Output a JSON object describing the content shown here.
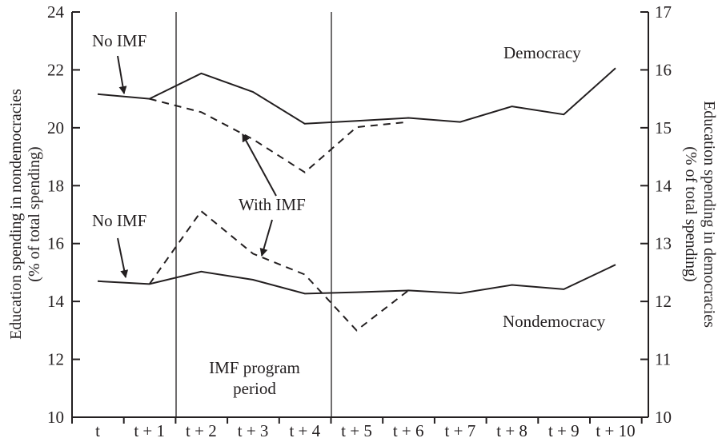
{
  "chart_data": {
    "type": "line",
    "categories": [
      "t",
      "t + 1",
      "t + 2",
      "t + 3",
      "t + 4",
      "t + 5",
      "t + 6",
      "t + 7",
      "t + 8",
      "t + 9",
      "t + 10"
    ],
    "left_axis": {
      "label_line1": "Education spending in nondemocracies",
      "label_line2": "(% of total spending)",
      "range": [
        10,
        24
      ],
      "ticks": [
        "10",
        "12",
        "14",
        "16",
        "18",
        "20",
        "22",
        "24"
      ]
    },
    "right_axis": {
      "label_line1": "Education spending in democracies",
      "label_line2": "(% of total spending)",
      "range": [
        10,
        17
      ],
      "ticks": [
        "10",
        "11",
        "12",
        "13",
        "14",
        "15",
        "16",
        "17"
      ]
    },
    "series": [
      {
        "name": "Democracy",
        "axis": "right",
        "style": "solid",
        "x": [
          "t",
          "t + 1",
          "t + 2",
          "t + 3",
          "t + 4",
          "t + 5",
          "t + 6",
          "t + 7",
          "t + 8",
          "t + 9",
          "t + 10"
        ],
        "values": [
          15.58,
          15.5,
          15.94,
          15.62,
          15.07,
          15.12,
          15.17,
          15.1,
          15.37,
          15.23,
          16.03
        ]
      },
      {
        "name": "Democracy with IMF",
        "axis": "right",
        "style": "dashed",
        "x": [
          "t + 1",
          "t + 2",
          "t + 3",
          "t + 4",
          "t + 5",
          "t + 6"
        ],
        "values": [
          15.5,
          15.27,
          14.8,
          14.23,
          15.01,
          15.1
        ]
      },
      {
        "name": "Nondemocracy",
        "axis": "left",
        "style": "solid",
        "x": [
          "t",
          "t + 1",
          "t + 2",
          "t + 3",
          "t + 4",
          "t + 5",
          "t + 6",
          "t + 7",
          "t + 8",
          "t + 9",
          "t + 10"
        ],
        "values": [
          14.7,
          14.6,
          15.03,
          14.75,
          14.27,
          14.32,
          14.38,
          14.28,
          14.57,
          14.42,
          15.27
        ]
      },
      {
        "name": "Nondemocracy with IMF",
        "axis": "left",
        "style": "dashed",
        "x": [
          "t + 1",
          "t + 2",
          "t + 3",
          "t + 4",
          "t + 5",
          "t + 6"
        ],
        "values": [
          14.6,
          17.12,
          15.65,
          14.93,
          13.0,
          14.38
        ]
      }
    ],
    "program_period": {
      "start": "t + 1",
      "end": "t + 4",
      "label_line1": "IMF program",
      "label_line2": "period"
    },
    "annotations": {
      "no_imf_top": "No IMF",
      "no_imf_bottom": "No IMF",
      "with_imf": "With IMF",
      "democracy": "Democracy",
      "nondemocracy": "Nondemocracy"
    },
    "grid": false,
    "legend": "none",
    "colors": {
      "ink": "#231f20"
    }
  }
}
